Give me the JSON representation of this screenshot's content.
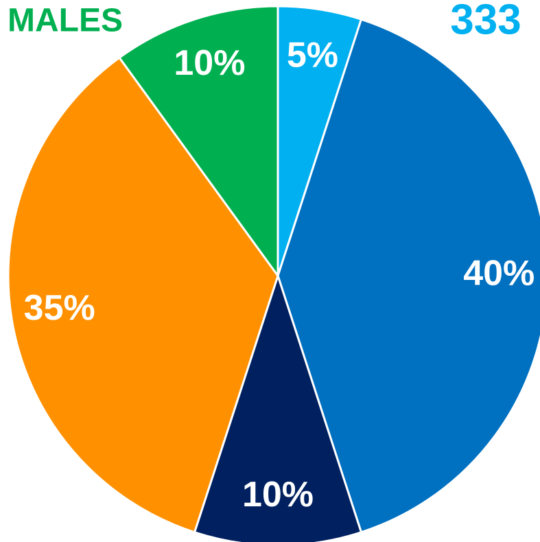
{
  "chart_data": {
    "type": "pie",
    "categories": [
      null,
      null,
      null,
      null,
      null
    ],
    "values": [
      5,
      40,
      10,
      35,
      10
    ],
    "value_labels": [
      "5%",
      "40%",
      "10%",
      "35%",
      "10%"
    ],
    "colors": [
      "#00b0f0",
      "#0070c0",
      "#002060",
      "#ff9000",
      "#00b050"
    ],
    "annotations": [
      {
        "text": "MALES",
        "color": "#00b050"
      },
      {
        "text": "333",
        "color": "#00b0f0"
      }
    ]
  }
}
